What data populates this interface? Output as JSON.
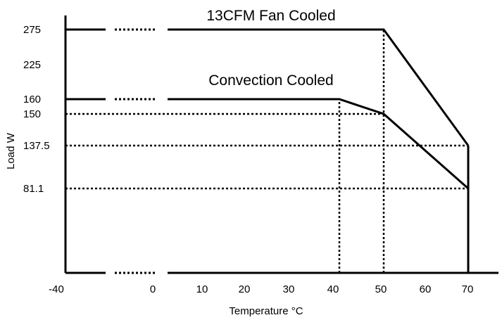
{
  "chart_data": {
    "type": "line",
    "title": "",
    "xlabel": "Temperature °C",
    "ylabel": "Load W",
    "x_ticks": [
      "-40",
      "0",
      "10",
      "20",
      "30",
      "40",
      "50",
      "60",
      "70"
    ],
    "y_ticks": [
      "275",
      "225",
      "160",
      "150",
      "137.5",
      "81.1"
    ],
    "x_axis_break": "between -40 and 0",
    "grid": false,
    "series": [
      {
        "name": "13CFM Fan Cooled",
        "x": [
          -40,
          50,
          70
        ],
        "y": [
          275,
          275,
          137.5
        ]
      },
      {
        "name": "Convection Cooled",
        "x": [
          -40,
          40,
          50,
          70
        ],
        "y": [
          160,
          160,
          150,
          81.1
        ]
      }
    ],
    "reference_lines": [
      {
        "type": "vertical",
        "x": 40,
        "from_y": 0,
        "to_y": 160
      },
      {
        "type": "vertical",
        "x": 50,
        "from_y": 0,
        "to_y": 275
      },
      {
        "type": "horizontal",
        "y": 150,
        "from_x": -40,
        "to_x": 50
      },
      {
        "type": "horizontal",
        "y": 137.5,
        "from_x": -40,
        "to_x": 70
      },
      {
        "type": "horizontal",
        "y": 81.1,
        "from_x": -40,
        "to_x": 70
      }
    ],
    "colors": {
      "line": "#000000",
      "background": "#ffffff"
    }
  }
}
